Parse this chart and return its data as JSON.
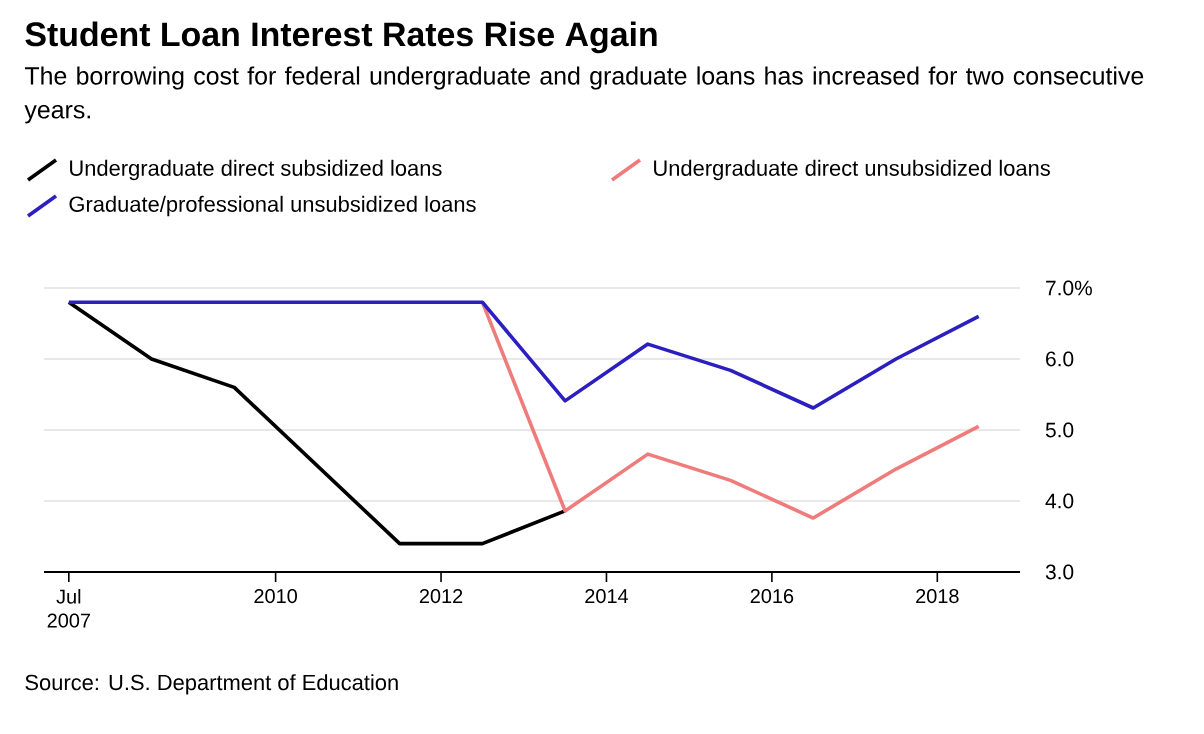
{
  "chart_data": {
    "type": "line",
    "title": "Student Loan Interest Rates Rise Again",
    "subtitle": "The borrowing cost for federal undergraduate and graduate loans has increased for two consecutive years.",
    "x": [
      2007.5,
      2008.5,
      2009.5,
      2010.5,
      2011.5,
      2012.5,
      2013.5,
      2014.5,
      2015.5,
      2016.5,
      2017.5,
      2018.5
    ],
    "series": [
      {
        "name": "Undergraduate direct subsidized loans",
        "color": "#000000",
        "values": [
          6.8,
          6.0,
          5.6,
          4.5,
          3.4,
          3.4,
          3.86,
          null,
          null,
          null,
          null,
          null
        ]
      },
      {
        "name": "Undergraduate direct unsubsidized loans",
        "color": "#f07b7b",
        "values": [
          null,
          null,
          null,
          null,
          null,
          6.8,
          3.86,
          4.66,
          4.29,
          3.76,
          4.45,
          5.05
        ]
      },
      {
        "name": "Graduate/professional unsubsidized loans",
        "color": "#2c1fc0",
        "values": [
          6.8,
          6.8,
          6.8,
          6.8,
          6.8,
          6.8,
          5.41,
          6.21,
          5.84,
          5.31,
          6.0,
          6.6
        ]
      }
    ],
    "xlim": [
      2007.2,
      2019.0
    ],
    "xticks": [
      {
        "value": 2007.5,
        "label": "Jul 2007"
      },
      {
        "value": 2010,
        "label": "2010"
      },
      {
        "value": 2012,
        "label": "2012"
      },
      {
        "value": 2014,
        "label": "2014"
      },
      {
        "value": 2016,
        "label": "2016"
      },
      {
        "value": 2018,
        "label": "2018"
      }
    ],
    "ylim": [
      3.0,
      7.0
    ],
    "yticks": [
      {
        "value": 3.0,
        "label": "3.0"
      },
      {
        "value": 4.0,
        "label": "4.0"
      },
      {
        "value": 5.0,
        "label": "5.0"
      },
      {
        "value": 6.0,
        "label": "6.0"
      },
      {
        "value": 7.0,
        "label": "7.0%"
      }
    ],
    "grid": "y",
    "legend": "top",
    "marker": "none",
    "line_style": "solid",
    "annotations": [
      "Source: U.S. Department of Education"
    ]
  }
}
